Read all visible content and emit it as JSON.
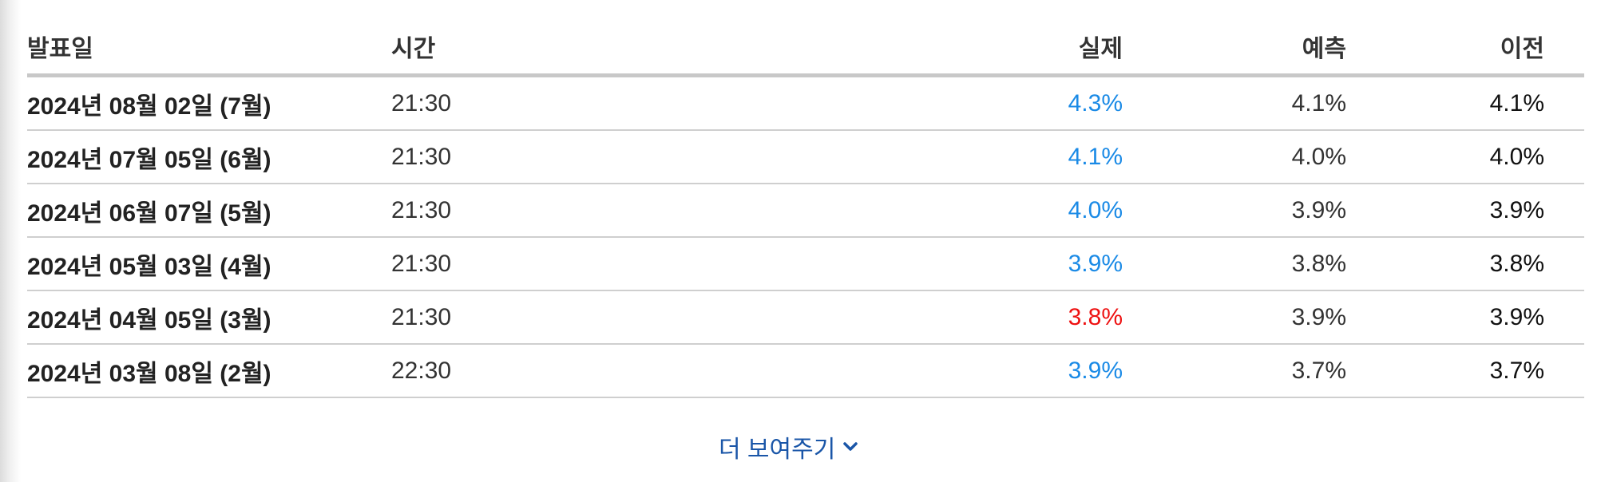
{
  "table": {
    "headers": {
      "date": "발표일",
      "time": "시간",
      "actual": "실제",
      "forecast": "예측",
      "previous": "이전"
    },
    "rows": [
      {
        "date": "2024년 08월 02일 (7월)",
        "time": "21:30",
        "actual": "4.3%",
        "forecast": "4.1%",
        "previous": "4.1%",
        "actual_color": "#1a8ae6"
      },
      {
        "date": "2024년 07월 05일 (6월)",
        "time": "21:30",
        "actual": "4.1%",
        "forecast": "4.0%",
        "previous": "4.0%",
        "actual_color": "#1a8ae6"
      },
      {
        "date": "2024년 06월 07일 (5월)",
        "time": "21:30",
        "actual": "4.0%",
        "forecast": "3.9%",
        "previous": "3.9%",
        "actual_color": "#1a8ae6"
      },
      {
        "date": "2024년 05월 03일 (4월)",
        "time": "21:30",
        "actual": "3.9%",
        "forecast": "3.8%",
        "previous": "3.8%",
        "actual_color": "#1a8ae6"
      },
      {
        "date": "2024년 04월 05일 (3월)",
        "time": "21:30",
        "actual": "3.8%",
        "forecast": "3.9%",
        "previous": "3.9%",
        "actual_color": "#ee1111"
      },
      {
        "date": "2024년 03월 08일 (2월)",
        "time": "22:30",
        "actual": "3.9%",
        "forecast": "3.7%",
        "previous": "3.7%",
        "actual_color": "#1a8ae6"
      }
    ]
  },
  "show_more": {
    "label": "더 보여주기",
    "icon": "chevron-down-icon"
  },
  "colors": {
    "actual_above": "#1a8ae6",
    "actual_below": "#ee1111",
    "link": "#1a56a8"
  }
}
